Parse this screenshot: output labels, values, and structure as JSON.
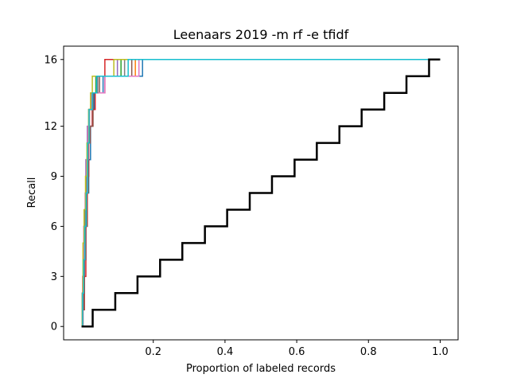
{
  "chart_data": {
    "type": "line",
    "title": "Leenaars 2019 -m rf -e tfidf",
    "xlabel": "Proportion of labeled records",
    "ylabel": "Recall",
    "xlim": [
      -0.05,
      1.05
    ],
    "ylim": [
      -0.8,
      16.8
    ],
    "x_ticks": [
      0.2,
      0.4,
      0.6,
      0.8,
      1.0
    ],
    "x_tick_labels": [
      "0.2",
      "0.4",
      "0.6",
      "0.8",
      "1.0"
    ],
    "y_ticks": [
      0,
      3,
      6,
      9,
      12,
      16
    ],
    "y_tick_labels": [
      "0",
      "3",
      "6",
      "9",
      "12",
      "16"
    ],
    "grid": false,
    "series": [
      {
        "color": "#1f77b4",
        "x": [
          0.0,
          0.004,
          0.008,
          0.012,
          0.016,
          0.02,
          0.025,
          0.03,
          0.035,
          0.045,
          0.06,
          0.17,
          1.0
        ],
        "y": [
          0,
          2,
          4,
          6,
          8,
          10,
          12,
          13,
          14,
          14,
          15,
          16,
          16
        ]
      },
      {
        "color": "#ff7f0e",
        "x": [
          0.0,
          0.003,
          0.006,
          0.01,
          0.014,
          0.018,
          0.022,
          0.03,
          0.04,
          0.15,
          1.0
        ],
        "y": [
          0,
          3,
          5,
          7,
          9,
          11,
          13,
          14,
          15,
          16,
          16
        ]
      },
      {
        "color": "#2ca02c",
        "x": [
          0.0,
          0.002,
          0.005,
          0.008,
          0.012,
          0.016,
          0.02,
          0.028,
          0.04,
          0.11,
          1.0
        ],
        "y": [
          0,
          2,
          4,
          6,
          9,
          11,
          13,
          14,
          15,
          16,
          16
        ]
      },
      {
        "color": "#d62728",
        "x": [
          0.0,
          0.004,
          0.008,
          0.012,
          0.016,
          0.02,
          0.024,
          0.03,
          0.038,
          0.065,
          1.0
        ],
        "y": [
          0,
          1,
          3,
          6,
          9,
          11,
          12,
          13,
          14,
          16,
          16
        ]
      },
      {
        "color": "#9467bd",
        "x": [
          0.0,
          0.002,
          0.005,
          0.008,
          0.012,
          0.016,
          0.02,
          0.03,
          0.045,
          0.1,
          1.0
        ],
        "y": [
          0,
          2,
          5,
          7,
          10,
          12,
          13,
          14,
          15,
          16,
          16
        ]
      },
      {
        "color": "#8c564b",
        "x": [
          0.0,
          0.003,
          0.007,
          0.011,
          0.015,
          0.019,
          0.024,
          0.032,
          0.05,
          0.14,
          1.0
        ],
        "y": [
          0,
          1,
          4,
          6,
          8,
          11,
          12,
          14,
          15,
          16,
          16
        ]
      },
      {
        "color": "#e377c2",
        "x": [
          0.0,
          0.003,
          0.006,
          0.01,
          0.014,
          0.018,
          0.022,
          0.027,
          0.065,
          0.16,
          1.0
        ],
        "y": [
          0,
          3,
          6,
          8,
          10,
          12,
          13,
          14,
          15,
          16,
          16
        ]
      },
      {
        "color": "#7f7f7f",
        "x": [
          0.0,
          0.002,
          0.006,
          0.01,
          0.013,
          0.017,
          0.021,
          0.03,
          0.045,
          0.12,
          1.0
        ],
        "y": [
          0,
          2,
          4,
          7,
          9,
          11,
          13,
          14,
          15,
          16,
          16
        ]
      },
      {
        "color": "#bcbd22",
        "x": [
          0.0,
          0.002,
          0.004,
          0.007,
          0.011,
          0.015,
          0.02,
          0.025,
          0.03,
          0.09,
          1.0
        ],
        "y": [
          0,
          2,
          5,
          7,
          9,
          11,
          13,
          14,
          15,
          16,
          16
        ]
      },
      {
        "color": "#17becf",
        "x": [
          0.0,
          0.003,
          0.006,
          0.009,
          0.013,
          0.017,
          0.021,
          0.03,
          0.042,
          0.13,
          1.0
        ],
        "y": [
          0,
          2,
          4,
          6,
          8,
          11,
          13,
          14,
          15,
          16,
          16
        ]
      },
      {
        "color": "#000000",
        "width": 2.5,
        "x": [
          0.0,
          0.031,
          0.094,
          0.156,
          0.219,
          0.281,
          0.344,
          0.406,
          0.469,
          0.531,
          0.594,
          0.656,
          0.719,
          0.781,
          0.844,
          0.906,
          0.969,
          1.0
        ],
        "y": [
          0,
          1,
          2,
          3,
          4,
          5,
          6,
          7,
          8,
          9,
          10,
          11,
          12,
          13,
          14,
          15,
          16,
          16
        ]
      }
    ]
  }
}
